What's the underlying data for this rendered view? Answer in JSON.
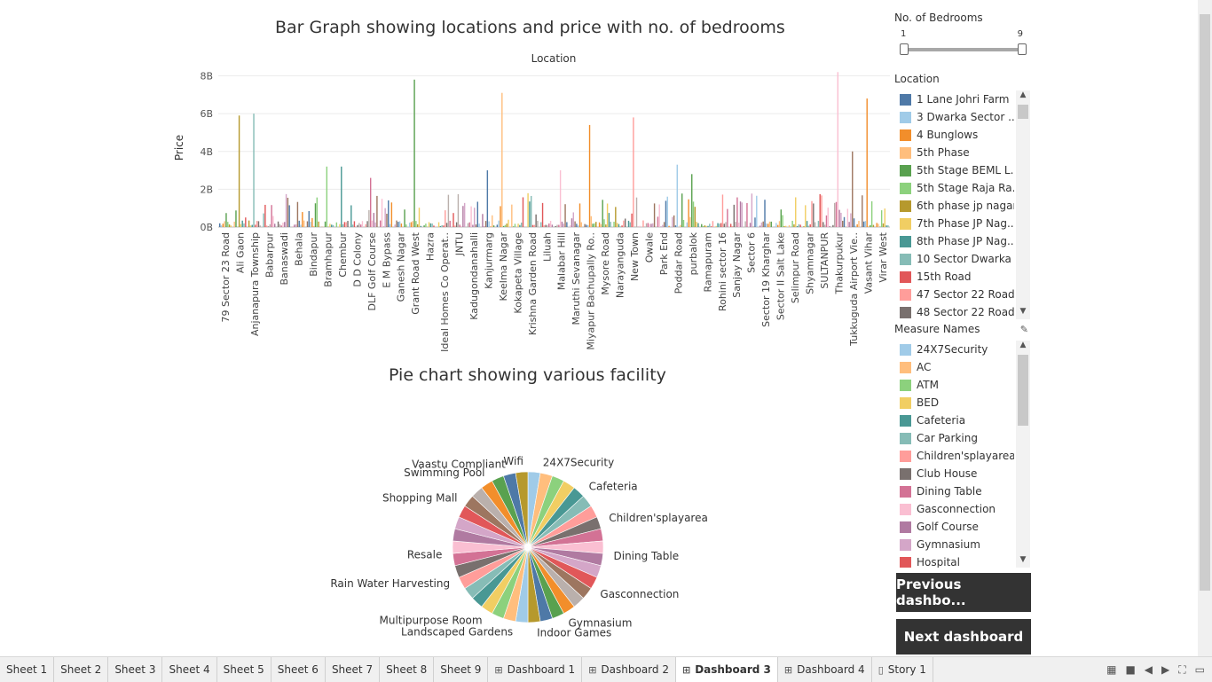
{
  "bar_title": "Bar Graph showing locations and price with no. of bedrooms",
  "pie_title": "Pie chart showing various facility",
  "filters": {
    "bedrooms": {
      "title": "No. of Bedrooms",
      "min": "1",
      "max": "9"
    },
    "location": {
      "title": "Location",
      "items": [
        {
          "label": "1 Lane Johri Farm",
          "color": "#4e79a7"
        },
        {
          "label": "3 Dwarka Sector ..",
          "color": "#a0cbe8"
        },
        {
          "label": "4 Bunglows",
          "color": "#f28e2b"
        },
        {
          "label": "5th Phase",
          "color": "#ffbe7d"
        },
        {
          "label": "5th Stage BEML L..",
          "color": "#59a14f"
        },
        {
          "label": "5th Stage Raja Ra..",
          "color": "#8cd17d"
        },
        {
          "label": "6th phase jp nagar",
          "color": "#b6992d"
        },
        {
          "label": "7th Phase JP Nag..",
          "color": "#f1ce63"
        },
        {
          "label": "8th Phase JP Nag..",
          "color": "#499894"
        },
        {
          "label": "10 Sector Dwarka",
          "color": "#86bcb6"
        },
        {
          "label": "15th Road",
          "color": "#e15759"
        },
        {
          "label": "47 Sector 22 Road",
          "color": "#ff9d9a"
        },
        {
          "label": "48 Sector 22 Road",
          "color": "#79706e"
        }
      ]
    },
    "measures": {
      "title": "Measure Names",
      "items": [
        {
          "label": "24X7Security",
          "color": "#a0cbe8"
        },
        {
          "label": "AC",
          "color": "#ffbe7d"
        },
        {
          "label": "ATM",
          "color": "#8cd17d"
        },
        {
          "label": "BED",
          "color": "#f1ce63"
        },
        {
          "label": "Cafeteria",
          "color": "#499894"
        },
        {
          "label": "Car Parking",
          "color": "#86bcb6"
        },
        {
          "label": "Children'splayarea",
          "color": "#ff9d9a"
        },
        {
          "label": "Club House",
          "color": "#79706e"
        },
        {
          "label": "Dining Table",
          "color": "#d37295"
        },
        {
          "label": "Gasconnection",
          "color": "#fabfd2"
        },
        {
          "label": "Golf Course",
          "color": "#b07aa1"
        },
        {
          "label": "Gymnasium",
          "color": "#d4a6c8"
        },
        {
          "label": "Hospital",
          "color": "#e15759"
        }
      ]
    }
  },
  "buttons": {
    "previous": "Previous dashbo...",
    "next": "Next dashboard"
  },
  "tabs": [
    {
      "label": "Sheet 1",
      "icon": ""
    },
    {
      "label": "Sheet 2",
      "icon": ""
    },
    {
      "label": "Sheet 3",
      "icon": ""
    },
    {
      "label": "Sheet 4",
      "icon": ""
    },
    {
      "label": "Sheet 5",
      "icon": ""
    },
    {
      "label": "Sheet 6",
      "icon": ""
    },
    {
      "label": "Sheet 7",
      "icon": ""
    },
    {
      "label": "Sheet 8",
      "icon": ""
    },
    {
      "label": "Sheet 9",
      "icon": ""
    },
    {
      "label": "Dashboard 1",
      "icon": "dashboard-icon"
    },
    {
      "label": "Dashboard 2",
      "icon": "dashboard-icon"
    },
    {
      "label": "Dashboard 3",
      "icon": "dashboard-icon",
      "active": true
    },
    {
      "label": "Dashboard 4",
      "icon": "dashboard-icon"
    },
    {
      "label": "Story 1",
      "icon": "story-icon"
    }
  ],
  "chart_data": [
    {
      "type": "bar",
      "title": "Bar Graph showing locations and price with no. of bedrooms",
      "xlabel": "Location",
      "ylabel": "Price",
      "ylim": [
        0,
        8400000000
      ],
      "yticks": [
        "0B",
        "2B",
        "4B",
        "6B",
        "8B"
      ],
      "grid": true,
      "categories": [
        "79 Sector 23 Road",
        "Ali Gaon",
        "Anjanapura Township",
        "Babarpur",
        "Banaswadi",
        "Behala",
        "Bindapur",
        "Bramhapur",
        "Chembur",
        "D D Colony",
        "DLF Golf Course",
        "E M Bypass",
        "Ganesh Nagar",
        "Grant Road West",
        "Hazra",
        "Ideal Homes Co Operat..",
        "JNTU",
        "Kadugondanahalli",
        "Kanjurmarg",
        "Keelma Nagar",
        "Kokapeta Village",
        "Krishna Garden Road",
        "Liluah",
        "Malabar Hill",
        "Maruthi Sevanagar",
        "Miyapur Bachupally Ro..",
        "Mysore Road",
        "Narayanguda",
        "New Town",
        "Owale",
        "Park End",
        "Poddar Road",
        "purbalok",
        "Ramapuram",
        "Rohini sector 16",
        "Sanjay Nagar",
        "Sector 6",
        "Sector 19 Kharghar",
        "Sector II Salt Lake",
        "Selimpur Road",
        "Shyamnagar",
        "SULTANPUR",
        "Thakurpukur",
        "Tukkuguda Airport Vie..",
        "Vasant Vihar",
        "Virar West"
      ],
      "notable_values": [
        {
          "category": "Ali Gaon",
          "value": 5900000000
        },
        {
          "category": "Anjanapura Township",
          "value": 6000000000
        },
        {
          "category": "Bramhapur",
          "value": 3200000000
        },
        {
          "category": "Chembur",
          "value": 3200000000
        },
        {
          "category": "DLF Golf Course",
          "value": 2600000000
        },
        {
          "category": "Grant Road West",
          "value": 7800000000
        },
        {
          "category": "Kanjurmarg",
          "value": 3000000000
        },
        {
          "category": "Keelma Nagar",
          "value": 7100000000
        },
        {
          "category": "Malabar Hill",
          "value": 3000000000
        },
        {
          "category": "Miyapur Bachupally Ro..",
          "value": 5400000000
        },
        {
          "category": "New Town",
          "value": 5800000000
        },
        {
          "category": "Poddar Road",
          "value": 3300000000
        },
        {
          "category": "purbalok",
          "value": 2800000000
        },
        {
          "category": "Thakurpukur",
          "value": 8200000000
        },
        {
          "category": "Tukkuguda Airport Vie..",
          "value": 4000000000
        },
        {
          "category": "Vasant Vihar",
          "value": 6800000000
        }
      ]
    },
    {
      "type": "pie",
      "title": "Pie chart showing various facility",
      "labels": [
        "24X7Security",
        "Cafeteria",
        "Children'splayarea",
        "Dining Table",
        "Gasconnection",
        "Gymnasium",
        "Indoor Games",
        "Landscaped Gardens",
        "Multipurpose Room",
        "Rain Water Harvesting",
        "Resale",
        "Shopping Mall",
        "Swimming Pool",
        "Vaastu Compliant",
        "Wifi"
      ],
      "slice_count": 38,
      "slices": "approximately equal"
    }
  ]
}
